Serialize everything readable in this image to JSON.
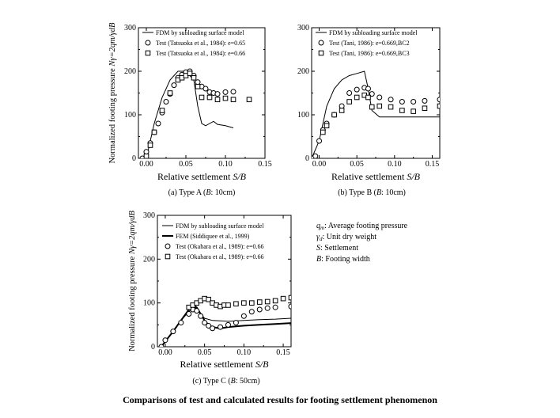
{
  "caption": "Comparisons of test and calculated results for footing settlement phenomenon",
  "legend_notes": [
    {
      "sym": "q",
      "sub": "m",
      "text": ": Average footing pressure"
    },
    {
      "sym": "γ",
      "sub": "d",
      "text": ": Unit dry weight"
    },
    {
      "sym": "S",
      "sub": "",
      "text": ": Settlement"
    },
    {
      "sym": "B",
      "sub": "",
      "text": ": Footing width"
    }
  ],
  "chart_data": [
    {
      "id": "a",
      "type": "line+scatter",
      "caption": "(a) Type A (",
      "caption_b": "B",
      "caption_rest": ": 10cm)",
      "xlabel": "Relative settlement",
      "xlabel_var": "S/B",
      "ylabel": "Normalized footing pressure",
      "ylabel_var": "Nγ=2qm/γdB",
      "xlim": [
        -0.01,
        0.15
      ],
      "ylim": [
        0,
        300
      ],
      "xticks": [
        0.0,
        0.05,
        0.1,
        0.15
      ],
      "xticklabels": [
        "0.00",
        "0.05",
        "0.10",
        "0.15"
      ],
      "yticks": [
        0,
        100,
        200,
        300
      ],
      "yticklabels": [
        "0",
        "100",
        "200",
        "300"
      ],
      "series": [
        {
          "name": "FDM by subloading surface model",
          "kind": "line",
          "width": 1,
          "x": [
            0.0,
            0.005,
            0.01,
            0.02,
            0.03,
            0.04,
            0.05,
            0.06,
            0.065,
            0.07,
            0.075,
            0.08,
            0.085,
            0.09,
            0.1,
            0.11
          ],
          "y": [
            0,
            40,
            80,
            140,
            180,
            200,
            200,
            180,
            120,
            80,
            75,
            80,
            85,
            78,
            75,
            70
          ]
        },
        {
          "name": "Test (Tatsuoka et al., 1984): e=0.65",
          "kind": "circle",
          "x": [
            -0.005,
            0.0,
            0.005,
            0.01,
            0.015,
            0.02,
            0.025,
            0.03,
            0.035,
            0.04,
            0.045,
            0.05,
            0.055,
            0.06,
            0.065,
            0.07,
            0.075,
            0.08,
            0.085,
            0.09,
            0.1,
            0.11
          ],
          "y": [
            0,
            15,
            35,
            60,
            80,
            105,
            130,
            148,
            168,
            185,
            192,
            198,
            200,
            190,
            175,
            165,
            160,
            152,
            150,
            148,
            152,
            153
          ]
        },
        {
          "name": "Test (Tatsuoka et al., 1984): e=0.66",
          "kind": "square",
          "x": [
            0.0,
            0.005,
            0.01,
            0.02,
            0.03,
            0.04,
            0.045,
            0.05,
            0.055,
            0.06,
            0.065,
            0.07,
            0.08,
            0.09,
            0.1,
            0.11,
            0.13
          ],
          "y": [
            5,
            30,
            60,
            110,
            150,
            180,
            185,
            190,
            195,
            185,
            165,
            140,
            140,
            135,
            138,
            135,
            135
          ]
        }
      ]
    },
    {
      "id": "b",
      "type": "line+scatter",
      "caption": "(b) Type B (",
      "caption_b": "B",
      "caption_rest": ": 10cm)",
      "xlabel": "Relative settlement",
      "xlabel_var": "S/B",
      "ylabel": "",
      "ylabel_var": "",
      "xlim": [
        -0.01,
        0.16
      ],
      "ylim": [
        0,
        300
      ],
      "xticks": [
        0.0,
        0.05,
        0.1,
        0.15
      ],
      "xticklabels": [
        "0.00",
        "0.05",
        "0.10",
        "0.15"
      ],
      "yticks": [
        0,
        100,
        200,
        300
      ],
      "yticklabels": [
        "0",
        "100",
        "200",
        "300"
      ],
      "series": [
        {
          "name": "FDM by subloading surface model",
          "kind": "line",
          "width": 1,
          "x": [
            -0.01,
            0.0,
            0.005,
            0.01,
            0.02,
            0.03,
            0.04,
            0.05,
            0.06,
            0.065,
            0.07,
            0.08,
            0.1,
            0.12,
            0.14,
            0.16
          ],
          "y": [
            0,
            40,
            80,
            120,
            160,
            180,
            190,
            195,
            200,
            160,
            110,
            95,
            95,
            95,
            95,
            95
          ]
        },
        {
          "name": "Test (Tani, 1986): e=0.669,BC2",
          "kind": "circle",
          "x": [
            -0.01,
            -0.005,
            0.0,
            0.005,
            0.01,
            0.02,
            0.03,
            0.04,
            0.05,
            0.06,
            0.065,
            0.07,
            0.08,
            0.095,
            0.11,
            0.125,
            0.14,
            0.16
          ],
          "y": [
            0,
            5,
            40,
            65,
            80,
            100,
            120,
            150,
            158,
            162,
            160,
            148,
            140,
            135,
            130,
            130,
            132,
            135
          ]
        },
        {
          "name": "Test (Tani, 1986): e=0.669,BC3",
          "kind": "square",
          "x": [
            0.005,
            0.01,
            0.02,
            0.03,
            0.04,
            0.05,
            0.06,
            0.065,
            0.07,
            0.08,
            0.095,
            0.11,
            0.125,
            0.14,
            0.16
          ],
          "y": [
            60,
            75,
            100,
            110,
            130,
            140,
            145,
            140,
            118,
            120,
            118,
            110,
            108,
            115,
            120
          ]
        }
      ]
    },
    {
      "id": "c",
      "type": "line+scatter",
      "caption": "(c) Type C (",
      "caption_b": "B",
      "caption_rest": ": 50cm)",
      "xlabel": "Relative settlement",
      "xlabel_var": "S/B",
      "ylabel": "Normalized footing pressure",
      "ylabel_var": "Nγ=2qm/γdB",
      "xlim": [
        -0.01,
        0.16
      ],
      "ylim": [
        0,
        300
      ],
      "xticks": [
        0.0,
        0.05,
        0.1,
        0.15
      ],
      "xticklabels": [
        "0.00",
        "0.05",
        "0.10",
        "0.15"
      ],
      "yticks": [
        0,
        100,
        200,
        300
      ],
      "yticklabels": [
        "0",
        "100",
        "200",
        "300"
      ],
      "series": [
        {
          "name": "FDM by subloading surface model",
          "kind": "line",
          "width": 1,
          "x": [
            -0.005,
            0.0,
            0.01,
            0.02,
            0.03,
            0.035,
            0.04,
            0.045,
            0.05,
            0.06,
            0.08,
            0.1,
            0.12,
            0.14,
            0.16
          ],
          "y": [
            0,
            12,
            35,
            60,
            80,
            90,
            88,
            75,
            65,
            60,
            58,
            60,
            62,
            63,
            65
          ]
        },
        {
          "name": "FEM (Siddiquee et al., 1999)",
          "kind": "line",
          "width": 2,
          "x": [
            -0.005,
            0.0,
            0.01,
            0.02,
            0.03,
            0.035,
            0.04,
            0.045,
            0.05,
            0.055,
            0.06,
            0.07,
            0.08,
            0.1,
            0.12,
            0.14,
            0.16
          ],
          "y": [
            0,
            12,
            35,
            60,
            85,
            95,
            90,
            75,
            60,
            50,
            45,
            42,
            45,
            48,
            50,
            52,
            54
          ]
        },
        {
          "name": "Test (Okahara et al., 1989): e=0.66",
          "kind": "circle",
          "x": [
            -0.005,
            0.0,
            0.01,
            0.02,
            0.03,
            0.035,
            0.04,
            0.045,
            0.05,
            0.055,
            0.06,
            0.07,
            0.08,
            0.09,
            0.1,
            0.11,
            0.12,
            0.13,
            0.14,
            0.16
          ],
          "y": [
            0,
            15,
            35,
            55,
            75,
            85,
            82,
            70,
            55,
            48,
            42,
            45,
            50,
            55,
            70,
            80,
            85,
            88,
            90,
            92
          ]
        },
        {
          "name": "Test (Okahara et al., 1989): e=0.66",
          "kind": "square",
          "x": [
            0.03,
            0.035,
            0.04,
            0.045,
            0.05,
            0.055,
            0.06,
            0.065,
            0.07,
            0.075,
            0.08,
            0.09,
            0.1,
            0.11,
            0.12,
            0.13,
            0.14,
            0.15,
            0.16
          ],
          "y": [
            90,
            95,
            100,
            105,
            110,
            108,
            100,
            95,
            92,
            95,
            95,
            98,
            100,
            100,
            102,
            103,
            105,
            110,
            112
          ]
        }
      ]
    }
  ]
}
